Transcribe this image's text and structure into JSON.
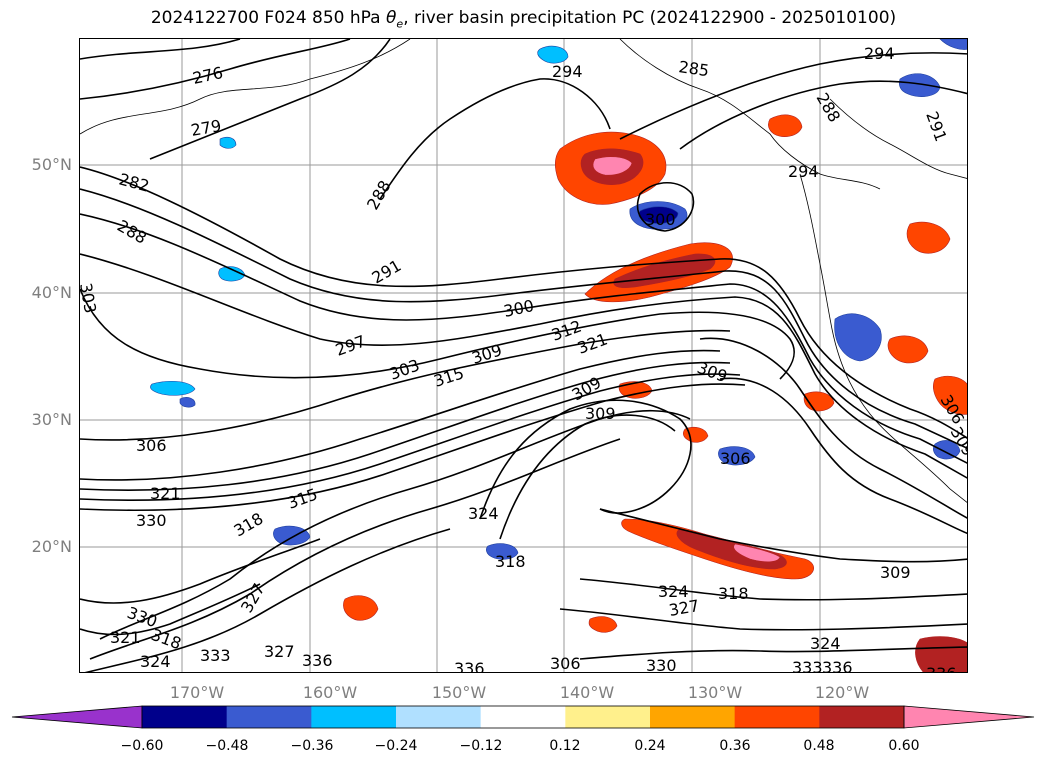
{
  "title": {
    "prefix": "2024122700 F024 850 hPa ",
    "theta_symbol": "θ",
    "theta_sub": "e",
    "suffix": ", river basin precipitation PC (2024122900 - 2025010100)"
  },
  "axes": {
    "lat_labels": [
      "50°N",
      "40°N",
      "30°N",
      "20°N"
    ],
    "lon_labels": [
      "170°W",
      "160°W",
      "150°W",
      "140°W",
      "130°W",
      "120°W"
    ]
  },
  "contour_labels": [
    "276",
    "279",
    "282",
    "285",
    "288",
    "288",
    "288",
    "291",
    "291",
    "294",
    "294",
    "294",
    "297",
    "300",
    "300",
    "303",
    "303",
    "306",
    "306",
    "309",
    "309",
    "309",
    "309",
    "309",
    "309",
    "312",
    "315",
    "315",
    "318",
    "318",
    "318",
    "318",
    "321",
    "321",
    "324",
    "324",
    "324",
    "324",
    "327",
    "327",
    "327",
    "330",
    "330",
    "330",
    "333",
    "333",
    "336",
    "336",
    "336",
    "336",
    "321",
    "306",
    "306"
  ],
  "colorbar": {
    "ticks": [
      "−0.60",
      "−0.48",
      "−0.36",
      "−0.24",
      "−0.12",
      "0.12",
      "0.24",
      "0.36",
      "0.48",
      "0.60"
    ],
    "colors": [
      "#9932cc",
      "#00008b",
      "#3a5bd0",
      "#00bfff",
      "#b0e0ff",
      "#ffffff",
      "#fff08c",
      "#ffa500",
      "#ff4500",
      "#b22222",
      "#ff85b0"
    ],
    "colors_note": "extend-min #9932cc, extend-max #ff85b0"
  }
}
